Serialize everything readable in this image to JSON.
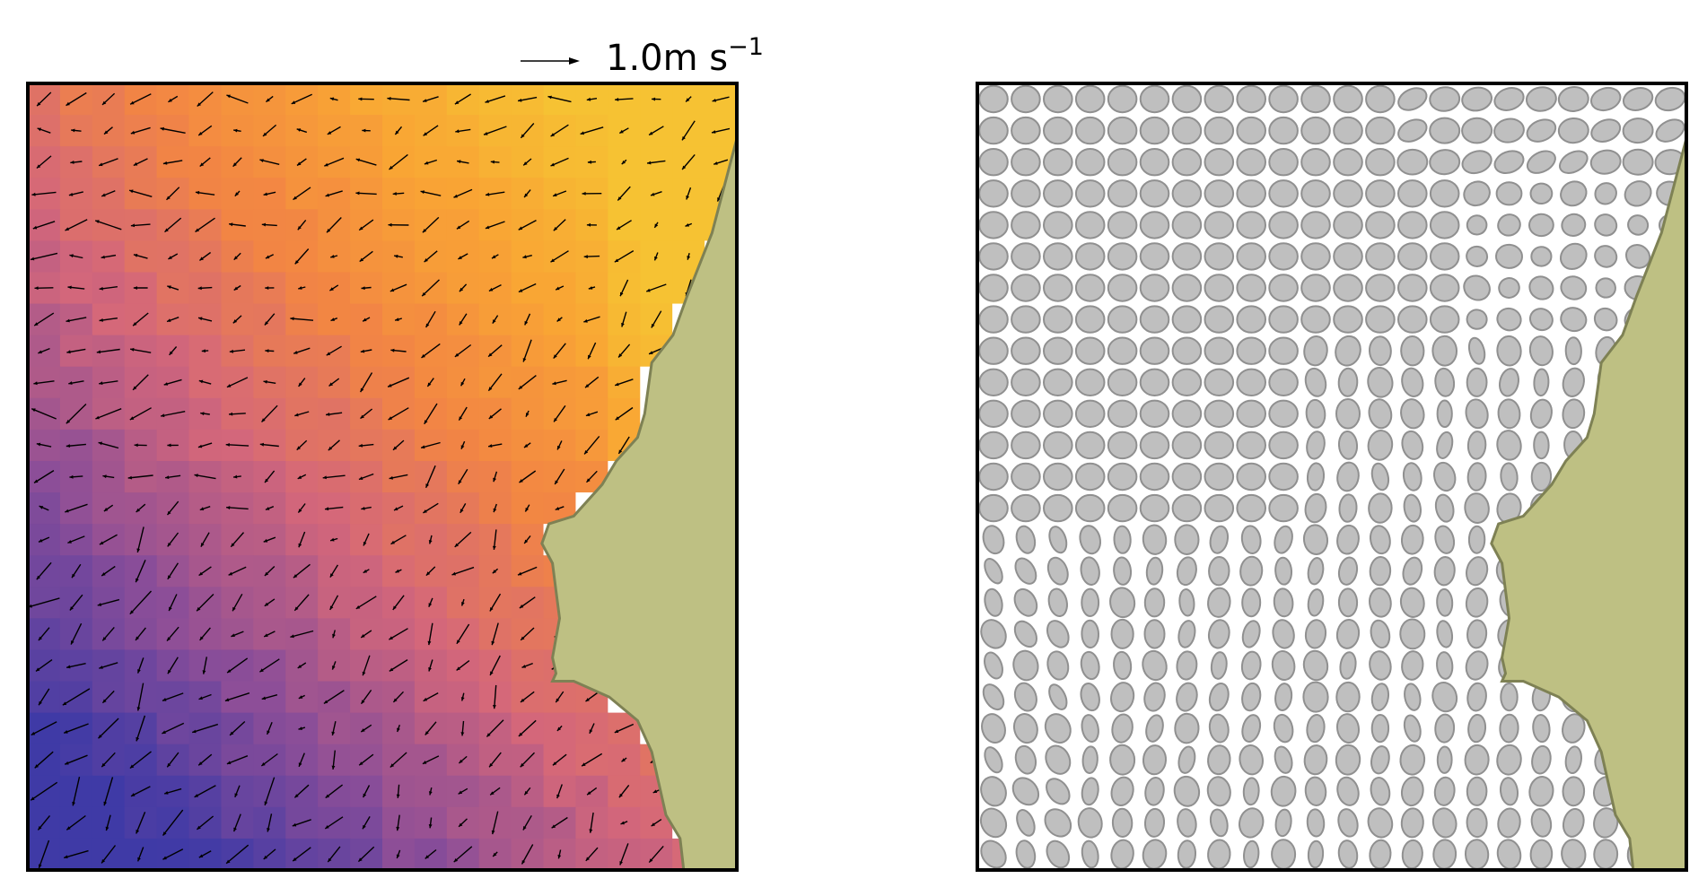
{
  "chart_data": [
    {
      "type": "heatmap",
      "panel": "left",
      "grid": false,
      "nx": 22,
      "ny": 25,
      "colormap": [
        "#3f3aa6",
        "#8c4e98",
        "#d4677a",
        "#f28544",
        "#f9a534",
        "#f6c233"
      ],
      "quiver_key": {
        "value": 1.0,
        "label_number": "1.0m s",
        "label_exponent": "−1"
      },
      "landmass_color": "#bec083",
      "landmass_edge": "#7e8154",
      "border_color": "#000000"
    },
    {
      "type": "scatter",
      "panel": "right",
      "grid": false,
      "nx": 22,
      "ny": 25,
      "marker": "ellipse",
      "marker_fill": "#b8b8b8",
      "marker_edge": "#909090",
      "landmass_color": "#bec083",
      "landmass_edge": "#7e8154",
      "border_color": "#000000"
    }
  ]
}
